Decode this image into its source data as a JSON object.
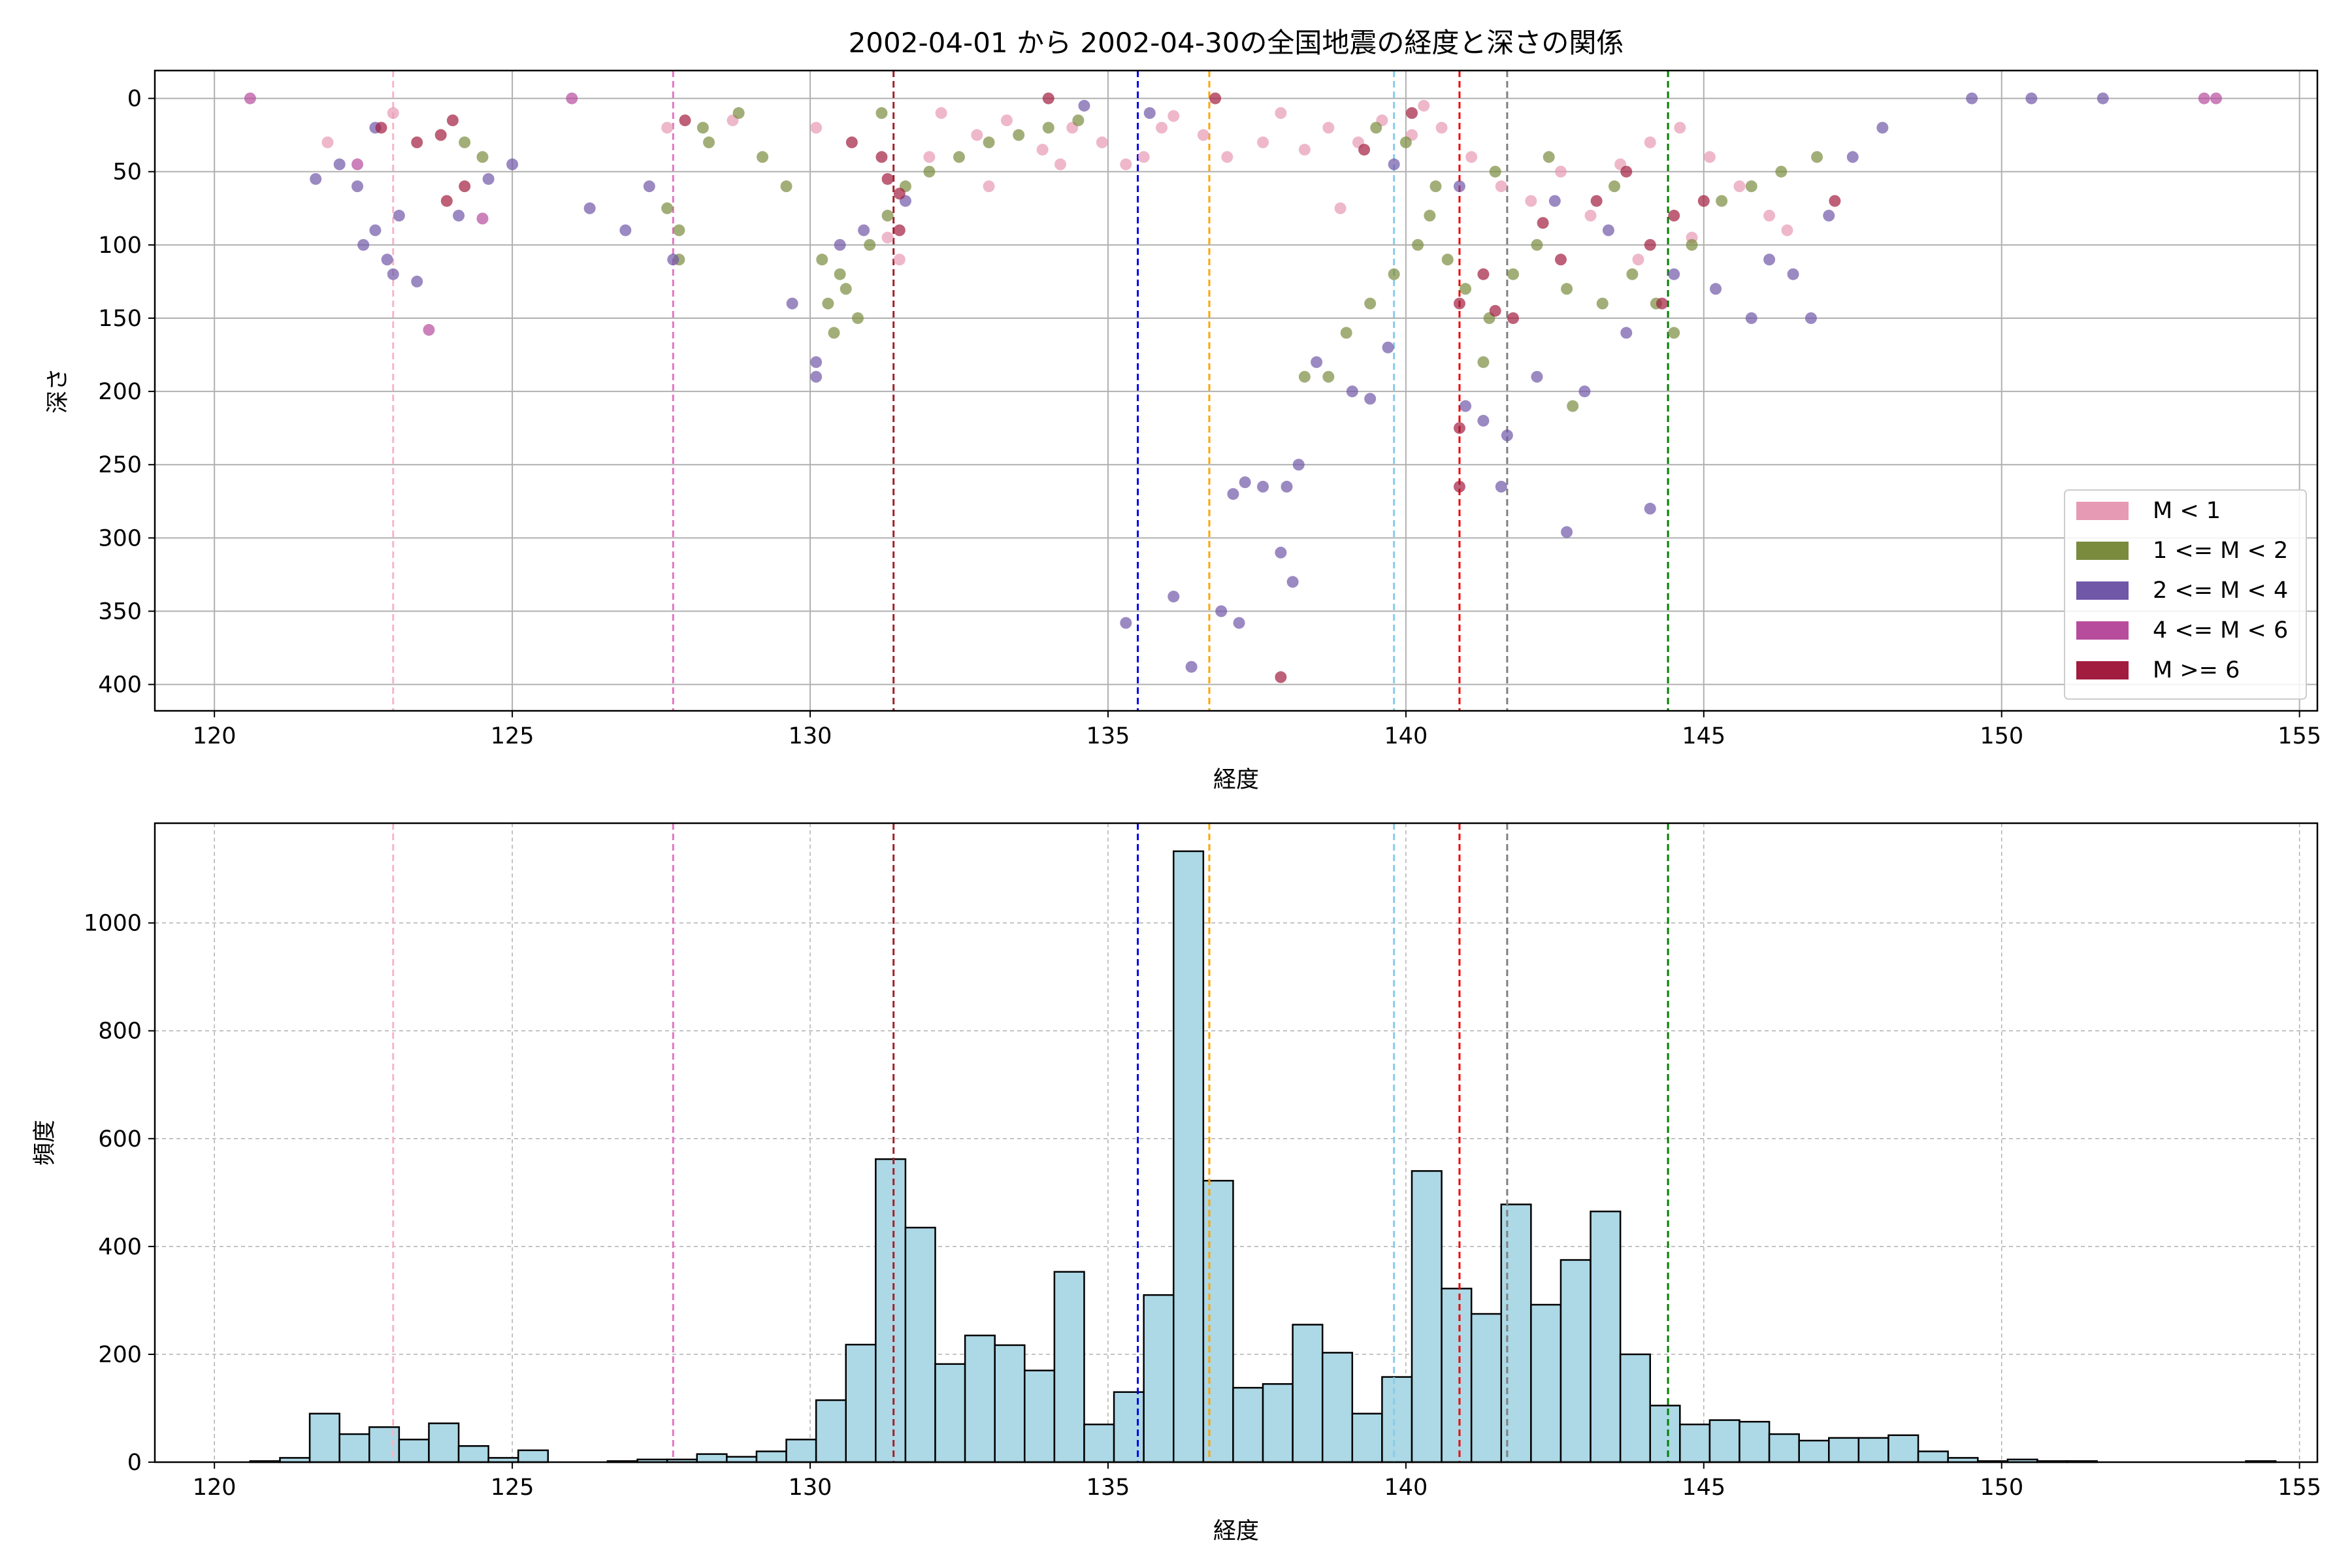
{
  "chart_data": [
    {
      "type": "scatter",
      "title": "2002-04-01 から 2002-04-30の全国地震の経度と深さの関係",
      "xlabel": "経度",
      "ylabel": "深さ",
      "xlim": [
        119,
        155.3
      ],
      "ylim": [
        418,
        -19
      ],
      "y_inverted": true,
      "grid": true,
      "legend_position": "lower-right",
      "xticks": [
        120,
        125,
        130,
        135,
        140,
        145,
        150,
        155
      ],
      "yticks": [
        0,
        50,
        100,
        150,
        200,
        250,
        300,
        350,
        400
      ],
      "series": [
        {
          "name": "M < 1",
          "color": "#e79ab4",
          "points": [
            [
              132.2,
              10
            ],
            [
              132.8,
              25
            ],
            [
              133.3,
              15
            ],
            [
              133.9,
              35
            ],
            [
              134.4,
              20
            ],
            [
              134.9,
              30
            ],
            [
              135.3,
              45
            ],
            [
              135.6,
              40
            ],
            [
              135.9,
              20
            ],
            [
              136.1,
              12
            ],
            [
              136.6,
              25
            ],
            [
              137.0,
              40
            ],
            [
              137.6,
              30
            ],
            [
              137.9,
              10
            ],
            [
              138.3,
              35
            ],
            [
              138.7,
              20
            ],
            [
              139.2,
              30
            ],
            [
              139.6,
              15
            ],
            [
              140.1,
              25
            ],
            [
              140.6,
              20
            ],
            [
              141.1,
              40
            ],
            [
              141.6,
              60
            ],
            [
              142.1,
              70
            ],
            [
              142.6,
              50
            ],
            [
              143.1,
              80
            ],
            [
              143.6,
              45
            ],
            [
              144.1,
              30
            ],
            [
              144.6,
              20
            ],
            [
              145.1,
              40
            ],
            [
              145.6,
              60
            ],
            [
              146.1,
              80
            ],
            [
              131.5,
              110
            ],
            [
              131.3,
              95
            ],
            [
              132.0,
              40
            ],
            [
              133.0,
              60
            ],
            [
              134.2,
              45
            ],
            [
              138.9,
              75
            ],
            [
              140.3,
              5
            ],
            [
              143.9,
              110
            ],
            [
              144.8,
              95
            ],
            [
              146.4,
              90
            ],
            [
              130.1,
              20
            ],
            [
              128.7,
              15
            ],
            [
              127.6,
              20
            ],
            [
              123.0,
              10
            ],
            [
              121.9,
              30
            ]
          ]
        },
        {
          "name": "1 <= M < 2",
          "color": "#7a8b3e",
          "points": [
            [
              130.3,
              140
            ],
            [
              130.4,
              160
            ],
            [
              130.6,
              130
            ],
            [
              130.8,
              150
            ],
            [
              130.5,
              120
            ],
            [
              130.2,
              110
            ],
            [
              131.0,
              100
            ],
            [
              131.3,
              80
            ],
            [
              131.6,
              60
            ],
            [
              132.0,
              50
            ],
            [
              132.5,
              40
            ],
            [
              133.0,
              30
            ],
            [
              133.5,
              25
            ],
            [
              134.0,
              20
            ],
            [
              134.5,
              15
            ],
            [
              128.3,
              30
            ],
            [
              128.8,
              10
            ],
            [
              129.2,
              40
            ],
            [
              129.6,
              60
            ],
            [
              127.8,
              90
            ],
            [
              127.8,
              110
            ],
            [
              127.6,
              75
            ],
            [
              124.5,
              40
            ],
            [
              124.2,
              30
            ],
            [
              138.3,
              190
            ],
            [
              138.7,
              190
            ],
            [
              139.0,
              160
            ],
            [
              139.4,
              140
            ],
            [
              139.8,
              120
            ],
            [
              140.2,
              100
            ],
            [
              140.4,
              80
            ],
            [
              140.7,
              110
            ],
            [
              141.0,
              130
            ],
            [
              141.4,
              150
            ],
            [
              141.8,
              120
            ],
            [
              142.2,
              100
            ],
            [
              142.7,
              130
            ],
            [
              143.3,
              140
            ],
            [
              143.8,
              120
            ],
            [
              144.2,
              140
            ],
            [
              144.5,
              160
            ],
            [
              144.8,
              100
            ],
            [
              145.3,
              70
            ],
            [
              145.8,
              60
            ],
            [
              146.3,
              50
            ],
            [
              146.9,
              40
            ],
            [
              142.8,
              210
            ],
            [
              141.3,
              180
            ],
            [
              140.5,
              60
            ],
            [
              141.5,
              50
            ],
            [
              142.4,
              40
            ],
            [
              143.5,
              60
            ],
            [
              140.0,
              30
            ],
            [
              139.5,
              20
            ],
            [
              128.2,
              20
            ],
            [
              131.2,
              10
            ]
          ]
        },
        {
          "name": "2 <= M < 4",
          "color": "#7057a8",
          "points": [
            [
              121.7,
              55
            ],
            [
              122.1,
              45
            ],
            [
              122.4,
              60
            ],
            [
              122.5,
              100
            ],
            [
              122.7,
              90
            ],
            [
              122.9,
              110
            ],
            [
              123.0,
              120
            ],
            [
              123.4,
              125
            ],
            [
              123.1,
              80
            ],
            [
              122.7,
              20
            ],
            [
              124.1,
              80
            ],
            [
              124.6,
              55
            ],
            [
              125.0,
              45
            ],
            [
              126.3,
              75
            ],
            [
              126.9,
              90
            ],
            [
              127.3,
              60
            ],
            [
              127.7,
              110
            ],
            [
              129.7,
              140
            ],
            [
              130.1,
              190
            ],
            [
              130.1,
              180
            ],
            [
              130.5,
              100
            ],
            [
              130.9,
              90
            ],
            [
              131.6,
              70
            ],
            [
              135.3,
              358
            ],
            [
              136.1,
              340
            ],
            [
              136.4,
              388
            ],
            [
              136.9,
              350
            ],
            [
              137.2,
              358
            ],
            [
              137.1,
              270
            ],
            [
              137.3,
              262
            ],
            [
              137.6,
              265
            ],
            [
              137.9,
              310
            ],
            [
              138.1,
              330
            ],
            [
              138.2,
              250
            ],
            [
              138.0,
              265
            ],
            [
              138.5,
              180
            ],
            [
              139.1,
              200
            ],
            [
              139.4,
              205
            ],
            [
              139.7,
              170
            ],
            [
              141.0,
              210
            ],
            [
              141.3,
              220
            ],
            [
              141.6,
              265
            ],
            [
              141.7,
              230
            ],
            [
              142.2,
              190
            ],
            [
              142.7,
              296
            ],
            [
              143.0,
              200
            ],
            [
              143.7,
              160
            ],
            [
              144.1,
              280
            ],
            [
              144.5,
              120
            ],
            [
              145.2,
              130
            ],
            [
              145.8,
              150
            ],
            [
              146.1,
              110
            ],
            [
              146.5,
              120
            ],
            [
              146.8,
              150
            ],
            [
              147.1,
              80
            ],
            [
              147.5,
              40
            ],
            [
              148.0,
              20
            ],
            [
              149.5,
              0
            ],
            [
              150.5,
              0
            ],
            [
              151.7,
              0
            ],
            [
              143.4,
              90
            ],
            [
              142.5,
              70
            ],
            [
              140.9,
              60
            ],
            [
              139.8,
              45
            ],
            [
              135.7,
              10
            ],
            [
              134.6,
              5
            ]
          ]
        },
        {
          "name": "4 <= M < 6",
          "color": "#b74c9c",
          "points": [
            [
              123.6,
              158
            ],
            [
              124.5,
              82
            ],
            [
              120.6,
              0
            ],
            [
              153.4,
              0
            ],
            [
              153.6,
              0
            ],
            [
              122.4,
              45
            ],
            [
              126.0,
              0
            ]
          ]
        },
        {
          "name": "M >= 6",
          "color": "#a11c3f",
          "points": [
            [
              122.8,
              20
            ],
            [
              123.4,
              30
            ],
            [
              123.8,
              25
            ],
            [
              124.0,
              15
            ],
            [
              124.2,
              60
            ],
            [
              123.9,
              70
            ],
            [
              127.9,
              15
            ],
            [
              130.7,
              30
            ],
            [
              131.2,
              40
            ],
            [
              131.5,
              65
            ],
            [
              131.3,
              55
            ],
            [
              131.5,
              90
            ],
            [
              137.9,
              395
            ],
            [
              140.9,
              225
            ],
            [
              140.9,
              265
            ],
            [
              140.9,
              140
            ],
            [
              141.5,
              145
            ],
            [
              141.8,
              150
            ],
            [
              141.3,
              120
            ],
            [
              142.3,
              85
            ],
            [
              142.6,
              110
            ],
            [
              143.2,
              70
            ],
            [
              143.7,
              50
            ],
            [
              144.1,
              100
            ],
            [
              144.3,
              140
            ],
            [
              144.5,
              80
            ],
            [
              145.0,
              70
            ],
            [
              147.2,
              70
            ],
            [
              140.1,
              10
            ],
            [
              139.3,
              35
            ],
            [
              134.0,
              0
            ],
            [
              136.8,
              0
            ]
          ]
        }
      ],
      "vlines": [
        {
          "x": 123.0,
          "color": "#f7b6c8"
        },
        {
          "x": 127.7,
          "color": "#e377c2"
        },
        {
          "x": 131.4,
          "color": "#a0202a"
        },
        {
          "x": 135.5,
          "color": "#0000ee"
        },
        {
          "x": 136.7,
          "color": "#ffa500"
        },
        {
          "x": 139.8,
          "color": "#87ceeb"
        },
        {
          "x": 140.9,
          "color": "#ee0000"
        },
        {
          "x": 141.7,
          "color": "#808080"
        },
        {
          "x": 144.4,
          "color": "#008000"
        }
      ]
    },
    {
      "type": "bar",
      "title": "",
      "xlabel": "経度",
      "ylabel": "頻度",
      "xlim": [
        119,
        155.3
      ],
      "ylim": [
        0,
        1185
      ],
      "grid": true,
      "xticks": [
        120,
        125,
        130,
        135,
        140,
        145,
        150,
        155
      ],
      "yticks": [
        0,
        200,
        400,
        600,
        800,
        1000
      ],
      "bar_color": "#add8e6",
      "bin_start": 120.6,
      "bin_width": 0.5,
      "values": [
        2,
        8,
        90,
        52,
        65,
        42,
        72,
        30,
        8,
        22,
        0,
        0,
        2,
        5,
        5,
        15,
        10,
        20,
        42,
        115,
        218,
        562,
        435,
        182,
        235,
        217,
        170,
        353,
        70,
        130,
        310,
        1133,
        522,
        138,
        145,
        255,
        203,
        90,
        158,
        540,
        322,
        275,
        478,
        292,
        375,
        465,
        200,
        105,
        70,
        78,
        75,
        52,
        40,
        45,
        45,
        50,
        20,
        8,
        2,
        5,
        2,
        2,
        0,
        0,
        0,
        0,
        0,
        2
      ],
      "vlines": [
        {
          "x": 123.0,
          "color": "#f7b6c8"
        },
        {
          "x": 127.7,
          "color": "#e377c2"
        },
        {
          "x": 131.4,
          "color": "#a0202a"
        },
        {
          "x": 135.5,
          "color": "#0000ee"
        },
        {
          "x": 136.7,
          "color": "#ffa500"
        },
        {
          "x": 139.8,
          "color": "#87ceeb"
        },
        {
          "x": 140.9,
          "color": "#ee0000"
        },
        {
          "x": 141.7,
          "color": "#808080"
        },
        {
          "x": 144.4,
          "color": "#008000"
        }
      ]
    }
  ]
}
